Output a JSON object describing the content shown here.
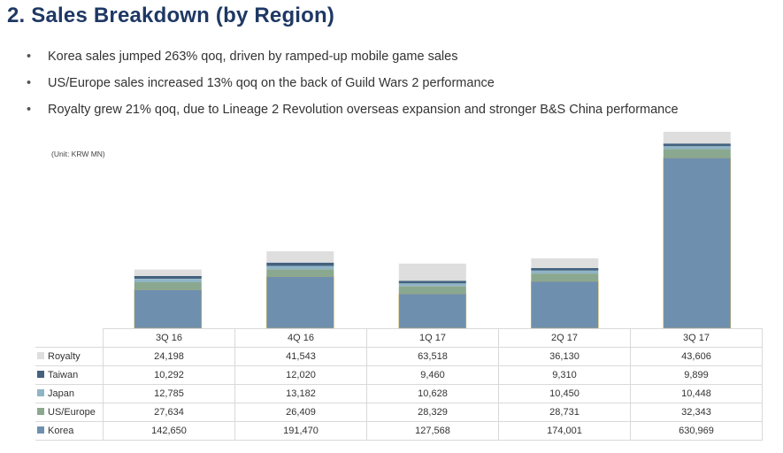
{
  "title": "2. Sales Breakdown (by Region)",
  "bullets": [
    "Korea sales jumped 263% qoq, driven by ramped-up mobile game sales",
    "US/Europe sales increased 13% qoq on the back of Guild Wars 2 performance",
    "Royalty grew 21% qoq, due to Lineage 2 Revolution overseas expansion and stronger B&S China performance"
  ],
  "unit_note": "(Unit: KRW MN)",
  "chart_data": {
    "type": "bar",
    "stacked": true,
    "categories": [
      "3Q 16",
      "4Q 16",
      "1Q 17",
      "2Q 17",
      "3Q 17"
    ],
    "series": [
      {
        "name": "Korea",
        "color": "#6f8fae",
        "values": [
          142650,
          191470,
          127568,
          174001,
          630969
        ],
        "labels": [
          "142,650",
          "191,470",
          "127,568",
          "174,001",
          "630,969"
        ]
      },
      {
        "name": "US/Europe",
        "color": "#8aa88f",
        "values": [
          27634,
          26409,
          28329,
          28731,
          32343
        ],
        "labels": [
          "27,634",
          "26,409",
          "28,329",
          "28,731",
          "32,343"
        ]
      },
      {
        "name": "Japan",
        "color": "#8fb4c6",
        "values": [
          12785,
          13182,
          10628,
          10450,
          10448
        ],
        "labels": [
          "12,785",
          "13,182",
          "10,628",
          "10,450",
          "10,448"
        ]
      },
      {
        "name": "Taiwan",
        "color": "#44627e",
        "values": [
          10292,
          12020,
          9460,
          9310,
          9899
        ],
        "labels": [
          "10,292",
          "12,020",
          "9,460",
          "9,310",
          "9,899"
        ]
      },
      {
        "name": "Royalty",
        "color": "#dedede",
        "values": [
          24198,
          41543,
          63518,
          36130,
          43606
        ],
        "labels": [
          "24,198",
          "41,543",
          "63,518",
          "36,130",
          "43,606"
        ]
      }
    ],
    "table_row_order": [
      "Royalty",
      "Taiwan",
      "Japan",
      "US/Europe",
      "Korea"
    ],
    "ylim": [
      0,
      740000
    ]
  }
}
